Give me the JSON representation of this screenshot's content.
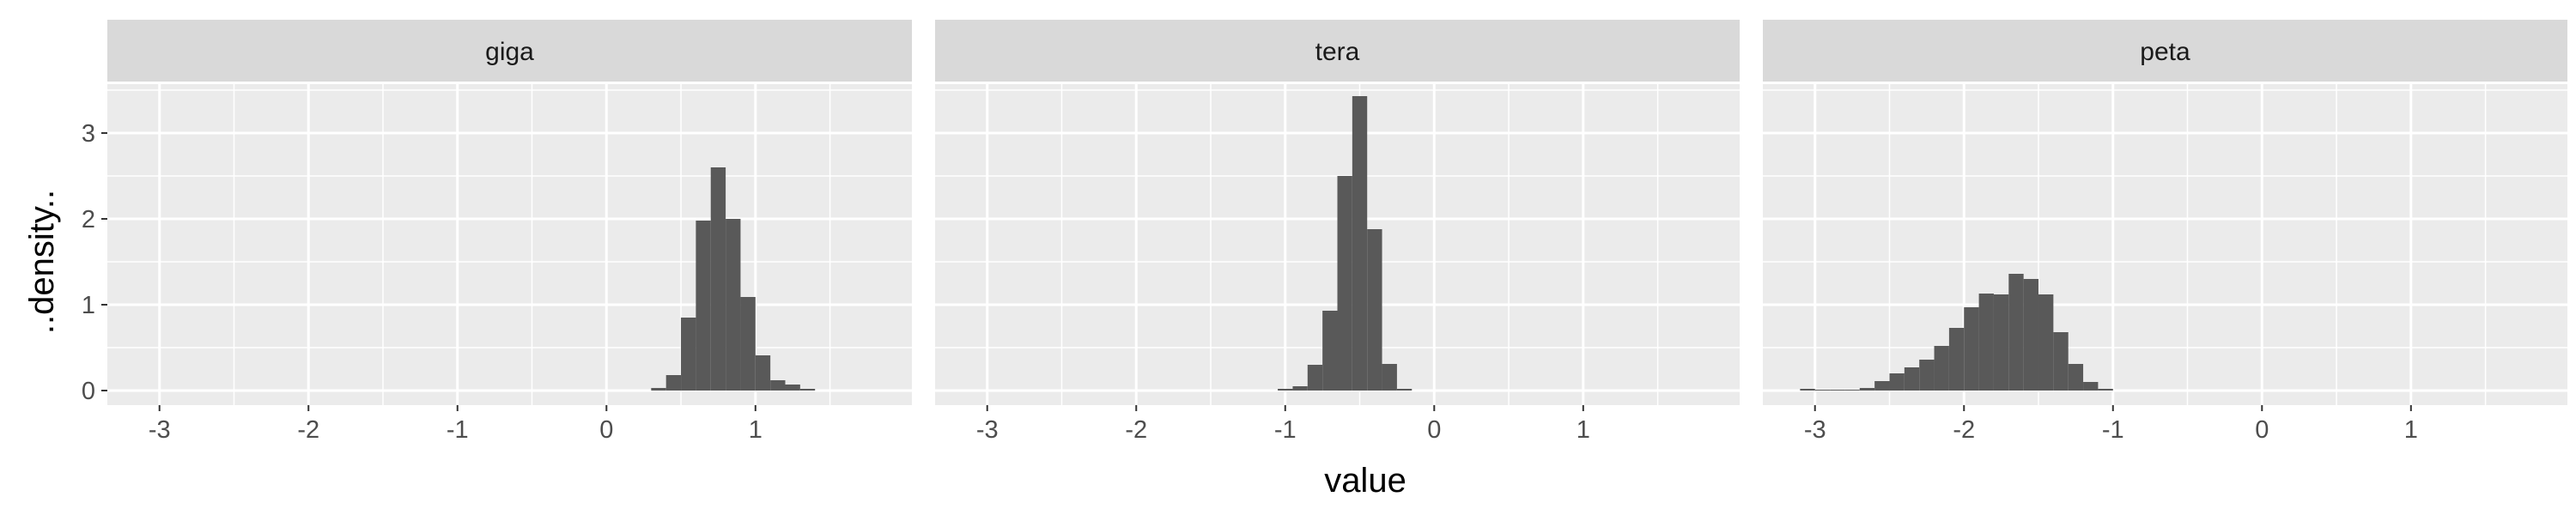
{
  "chart_data": {
    "type": "histogram",
    "xlabel": "value",
    "ylabel": "..density..",
    "xlim": [
      -3.35,
      2.05
    ],
    "ylim": [
      -0.17,
      3.57
    ],
    "x_ticks": [
      -3,
      -2,
      -1,
      0,
      1
    ],
    "y_ticks": [
      0,
      1,
      2,
      3
    ],
    "grid": true,
    "facets": [
      {
        "label": "giga",
        "bins": [
          {
            "x0": 0.3,
            "x1": 0.4,
            "density": 0.03
          },
          {
            "x0": 0.4,
            "x1": 0.5,
            "density": 0.18
          },
          {
            "x0": 0.5,
            "x1": 0.6,
            "density": 0.85
          },
          {
            "x0": 0.6,
            "x1": 0.7,
            "density": 1.98
          },
          {
            "x0": 0.7,
            "x1": 0.8,
            "density": 2.6
          },
          {
            "x0": 0.8,
            "x1": 0.9,
            "density": 2.0
          },
          {
            "x0": 0.9,
            "x1": 1.0,
            "density": 1.09
          },
          {
            "x0": 1.0,
            "x1": 1.1,
            "density": 0.41
          },
          {
            "x0": 1.1,
            "x1": 1.2,
            "density": 0.12
          },
          {
            "x0": 1.2,
            "x1": 1.3,
            "density": 0.07
          },
          {
            "x0": 1.3,
            "x1": 1.4,
            "density": 0.02
          }
        ]
      },
      {
        "label": "tera",
        "bins": [
          {
            "x0": -1.05,
            "x1": -0.95,
            "density": 0.02
          },
          {
            "x0": -0.95,
            "x1": -0.85,
            "density": 0.05
          },
          {
            "x0": -0.85,
            "x1": -0.75,
            "density": 0.3
          },
          {
            "x0": -0.75,
            "x1": -0.65,
            "density": 0.93
          },
          {
            "x0": -0.65,
            "x1": -0.55,
            "density": 2.5
          },
          {
            "x0": -0.55,
            "x1": -0.45,
            "density": 3.43
          },
          {
            "x0": -0.45,
            "x1": -0.35,
            "density": 1.88
          },
          {
            "x0": -0.35,
            "x1": -0.25,
            "density": 0.31
          },
          {
            "x0": -0.25,
            "x1": -0.15,
            "density": 0.02
          }
        ]
      },
      {
        "label": "peta",
        "bins": [
          {
            "x0": -3.1,
            "x1": -3.0,
            "density": 0.02
          },
          {
            "x0": -3.0,
            "x1": -2.9,
            "density": 0.01
          },
          {
            "x0": -2.9,
            "x1": -2.8,
            "density": 0.01
          },
          {
            "x0": -2.8,
            "x1": -2.7,
            "density": 0.01
          },
          {
            "x0": -2.7,
            "x1": -2.6,
            "density": 0.03
          },
          {
            "x0": -2.6,
            "x1": -2.5,
            "density": 0.11
          },
          {
            "x0": -2.5,
            "x1": -2.4,
            "density": 0.2
          },
          {
            "x0": -2.4,
            "x1": -2.3,
            "density": 0.27
          },
          {
            "x0": -2.3,
            "x1": -2.2,
            "density": 0.36
          },
          {
            "x0": -2.2,
            "x1": -2.1,
            "density": 0.52
          },
          {
            "x0": -2.1,
            "x1": -2.0,
            "density": 0.73
          },
          {
            "x0": -2.0,
            "x1": -1.9,
            "density": 0.97
          },
          {
            "x0": -1.9,
            "x1": -1.8,
            "density": 1.13
          },
          {
            "x0": -1.8,
            "x1": -1.7,
            "density": 1.12
          },
          {
            "x0": -1.7,
            "x1": -1.6,
            "density": 1.36
          },
          {
            "x0": -1.6,
            "x1": -1.5,
            "density": 1.3
          },
          {
            "x0": -1.5,
            "x1": -1.4,
            "density": 1.12
          },
          {
            "x0": -1.4,
            "x1": -1.3,
            "density": 0.68
          },
          {
            "x0": -1.3,
            "x1": -1.2,
            "density": 0.31
          },
          {
            "x0": -1.2,
            "x1": -1.1,
            "density": 0.1
          },
          {
            "x0": -1.1,
            "x1": -1.0,
            "density": 0.02
          }
        ]
      }
    ]
  },
  "colors": {
    "panel_background": "#ebebeb",
    "grid": "#ffffff",
    "strip_background": "#d9d9d9",
    "bar_fill": "#595959",
    "tick_text": "#4d4d4d",
    "tick_mark": "#333333"
  }
}
